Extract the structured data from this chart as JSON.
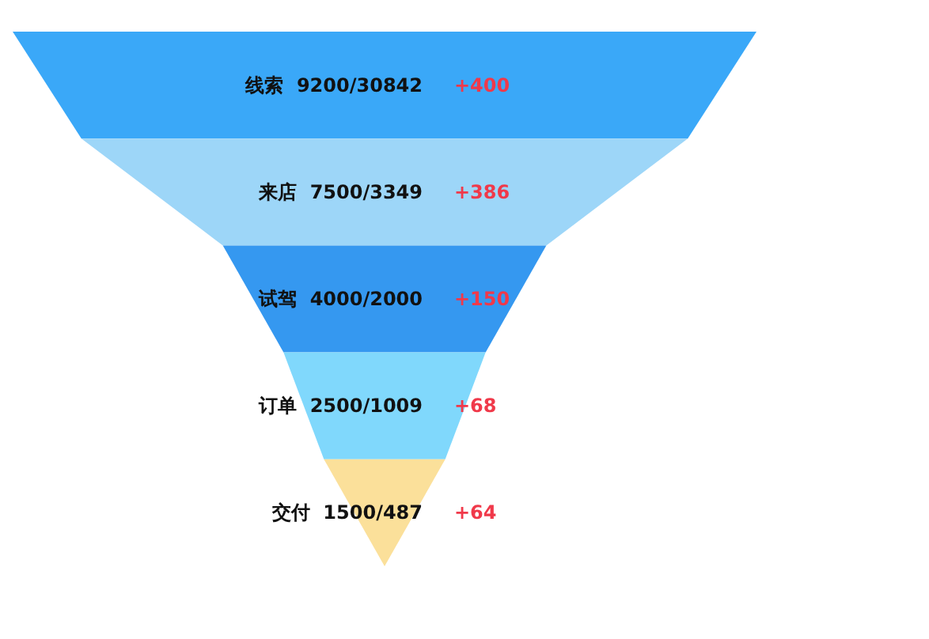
{
  "chart_data": {
    "type": "other",
    "categories": [
      "线索",
      "来店",
      "试驾",
      "订单",
      "交付"
    ],
    "series": [
      {
        "values": [
          9200,
          7500,
          4000,
          2500,
          1500
        ],
        "colors": [
          "#3aa8f8",
          "#9dd6f8",
          "#3598f0",
          "#80d8fc",
          "#fbe09a"
        ]
      },
      {
        "values": [
          30842,
          3349,
          2000,
          1009,
          487
        ],
        "value_labels": [
          "/30842",
          "/3349",
          "/2000",
          "/1009",
          "/487"
        ]
      },
      {
        "values": [
          400,
          386,
          150,
          68,
          64
        ],
        "value_labels": [
          "+400",
          "+386",
          "+150",
          "+68",
          "+64"
        ]
      }
    ],
    "data_labels": true
  }
}
